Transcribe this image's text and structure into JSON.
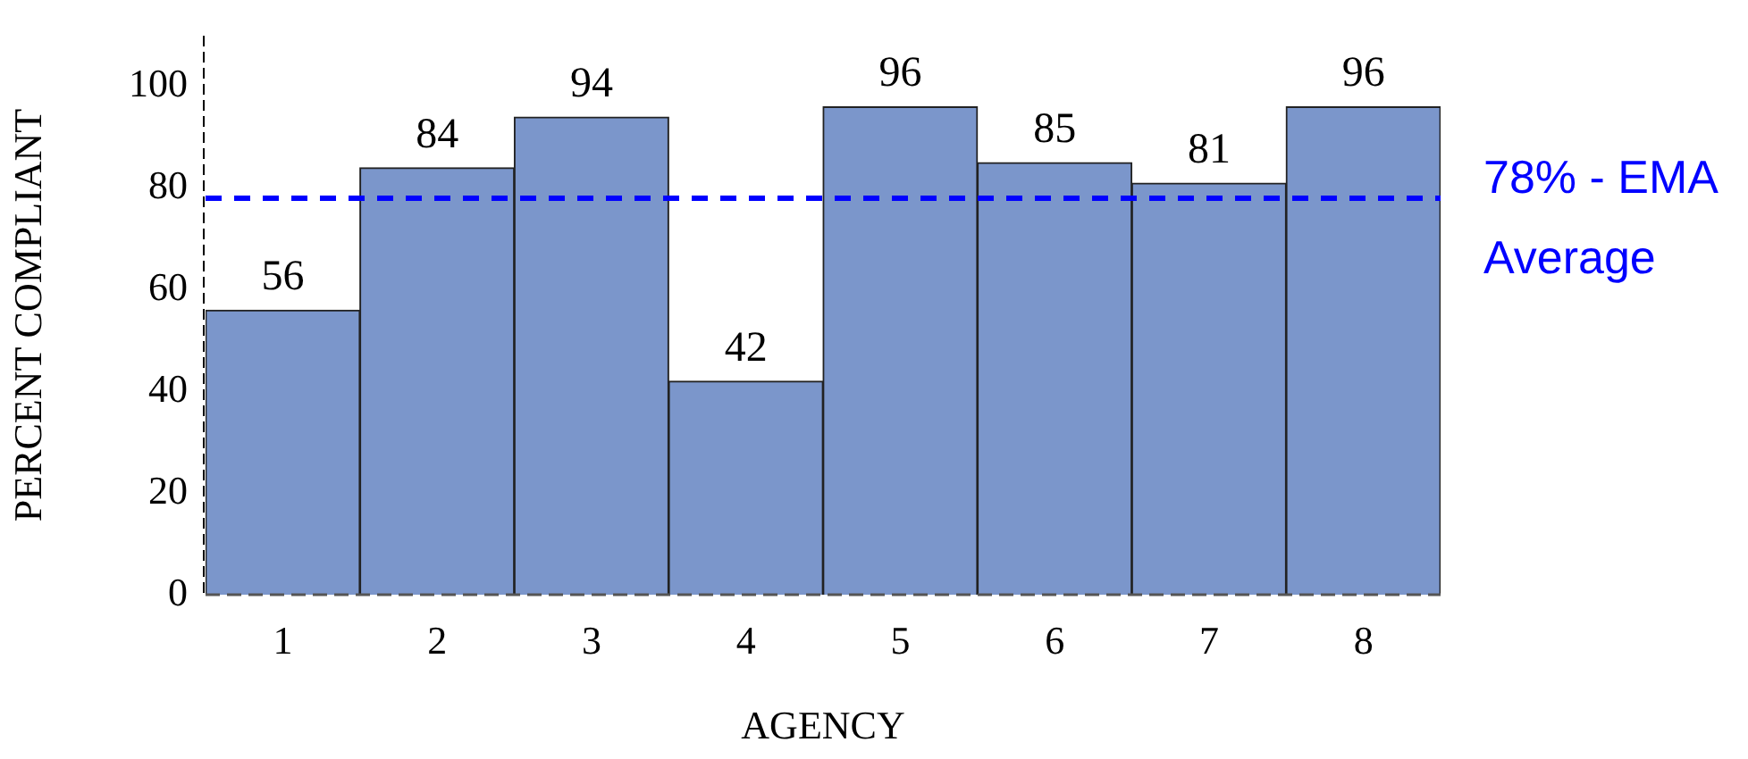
{
  "chart_data": {
    "type": "bar",
    "xlabel": "AGENCY",
    "ylabel": "PERCENT COMPLIANT",
    "categories": [
      "1",
      "2",
      "3",
      "4",
      "5",
      "6",
      "7",
      "8"
    ],
    "values": [
      56,
      84,
      94,
      42,
      96,
      85,
      81,
      96
    ],
    "color": "#7b96cb",
    "ylim": [
      0,
      110
    ],
    "yticks": [
      0,
      20,
      40,
      60,
      80,
      100
    ],
    "grid": false,
    "legend": false,
    "data_labels": true,
    "ref_lines": [
      {
        "axis": "y",
        "value": 78,
        "label": "78% - EMA Average",
        "color": "#0000ff",
        "line_style": "dashed"
      }
    ]
  }
}
